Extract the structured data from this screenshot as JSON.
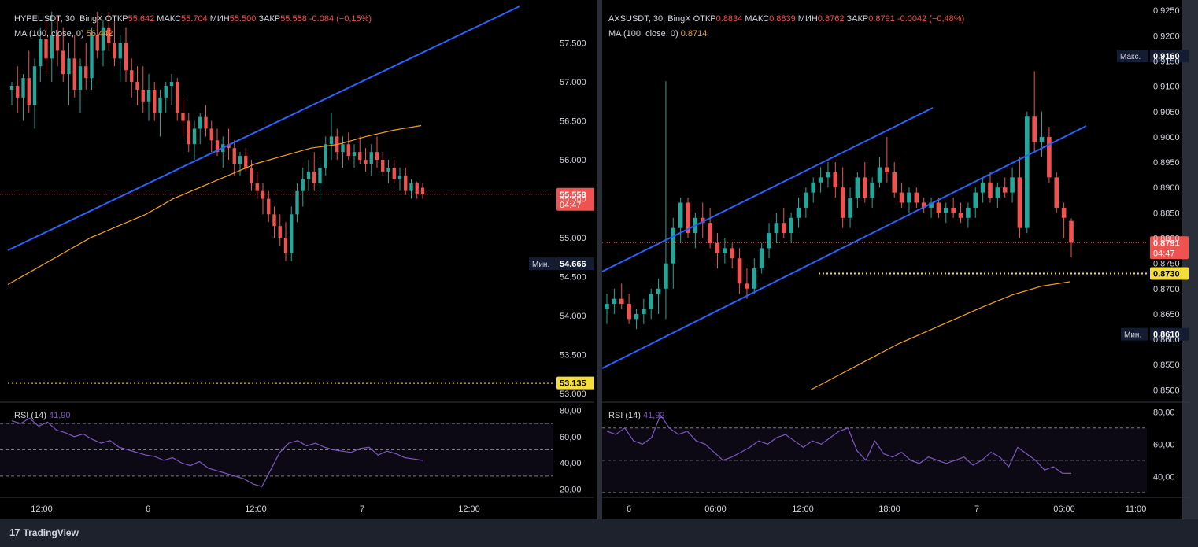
{
  "footer": {
    "brand": "TradingView"
  },
  "colors": {
    "up": "#26a69a",
    "down": "#ef5350",
    "ma": "#f7a21b",
    "trend": "#2962ff",
    "rsi": "#7e57c2",
    "badge_price": "#ef5350",
    "badge_level": "#f5de3b",
    "badge_dark": "#131c33"
  },
  "panels": [
    {
      "id": "left",
      "header": {
        "line1": [
          {
            "t": "HYPEUSDT, 30, BingX ",
            "c": "#d1d4dc"
          },
          {
            "t": "ОТКР",
            "c": "#d1d4dc"
          },
          {
            "t": "55.642 ",
            "c": "#ef5350"
          },
          {
            "t": "МАКС",
            "c": "#d1d4dc"
          },
          {
            "t": "55.704 ",
            "c": "#ef5350"
          },
          {
            "t": "МИН",
            "c": "#d1d4dc"
          },
          {
            "t": "55.500 ",
            "c": "#ef5350"
          },
          {
            "t": "ЗАКР",
            "c": "#d1d4dc"
          },
          {
            "t": "55.558 ",
            "c": "#ef5350"
          },
          {
            "t": "-0.084 (−0,15%)",
            "c": "#ef5350"
          }
        ],
        "line2_label": "MA (100, close, 0)",
        "line2_value": "56.442"
      },
      "rsi_label": "RSI (14)",
      "rsi_value": "41,90",
      "price_ticks": [
        "57.500",
        "57.000",
        "56.500",
        "56.000",
        "55.500",
        "55.000",
        "54.500",
        "54.000",
        "53.500",
        "53.000"
      ],
      "rsi_ticks": [
        "80,00",
        "60,00",
        "40,00",
        "20,00"
      ],
      "time_ticks": [
        "12:00",
        "6",
        "12:00",
        "7",
        "12:00"
      ],
      "badges": {
        "last_price": "55.558",
        "countdown": "04:47",
        "min_label": "Мин.",
        "min_value": "54.666",
        "level": "53.135"
      }
    },
    {
      "id": "right",
      "header": {
        "line1": [
          {
            "t": "AXSUSDT, 30, BingX ",
            "c": "#d1d4dc"
          },
          {
            "t": "ОТКР",
            "c": "#d1d4dc"
          },
          {
            "t": "0.8834 ",
            "c": "#ef5350"
          },
          {
            "t": "МАКС",
            "c": "#d1d4dc"
          },
          {
            "t": "0.8839 ",
            "c": "#ef5350"
          },
          {
            "t": "МИН",
            "c": "#d1d4dc"
          },
          {
            "t": "0.8762 ",
            "c": "#ef5350"
          },
          {
            "t": "ЗАКР",
            "c": "#d1d4dc"
          },
          {
            "t": "0.8791 ",
            "c": "#ef5350"
          },
          {
            "t": "-0.0042 (−0,48%)",
            "c": "#ef5350"
          }
        ],
        "line2_label": "MA (100, close, 0)",
        "line2_value": "0.8714"
      },
      "rsi_label": "RSI (14)",
      "rsi_value": "41,92",
      "price_ticks": [
        "0.9250",
        "0.9200",
        "0.9150",
        "0.9100",
        "0.9050",
        "0.9000",
        "0.8950",
        "0.8900",
        "0.8850",
        "0.8800",
        "0.8750",
        "0.8700",
        "0.8650",
        "0.8600",
        "0.8550",
        "0.8500"
      ],
      "rsi_ticks": [
        "80,00",
        "60,00",
        "40,00"
      ],
      "time_ticks": [
        "6",
        "06:00",
        "12:00",
        "18:00",
        "7",
        "06:00",
        "11:00"
      ],
      "badges": {
        "max_label": "Макс.",
        "max_value": "0.9160",
        "last_price": "0.8791",
        "countdown": "04:47",
        "level": "0.8730",
        "min_label": "Мин.",
        "min_value": "0.8610"
      }
    }
  ],
  "chart_data": [
    {
      "type": "candlestick",
      "title": "HYPEUSDT, 30, BingX",
      "ylim": [
        52.95,
        57.95
      ],
      "x_labels": [
        "12:00",
        "6",
        "12:00",
        "7",
        "12:00"
      ],
      "ohlc": [
        [
          56.9,
          57.0,
          56.7,
          56.95
        ],
        [
          56.95,
          57.2,
          56.6,
          56.8
        ],
        [
          56.8,
          57.1,
          56.5,
          57.05
        ],
        [
          57.05,
          57.4,
          56.6,
          56.7
        ],
        [
          56.7,
          57.3,
          56.4,
          57.2
        ],
        [
          57.2,
          57.7,
          57.0,
          57.55
        ],
        [
          57.55,
          57.8,
          57.1,
          57.3
        ],
        [
          57.3,
          57.9,
          57.0,
          57.6
        ],
        [
          57.6,
          57.85,
          57.2,
          57.4
        ],
        [
          57.4,
          57.7,
          57.0,
          57.1
        ],
        [
          57.1,
          57.5,
          56.7,
          57.3
        ],
        [
          57.3,
          57.6,
          56.8,
          56.9
        ],
        [
          56.9,
          57.3,
          56.6,
          57.2
        ],
        [
          57.2,
          57.5,
          56.9,
          57.05
        ],
        [
          57.05,
          57.7,
          56.9,
          57.6
        ],
        [
          57.6,
          57.9,
          57.3,
          57.4
        ],
        [
          57.4,
          57.8,
          57.2,
          57.7
        ],
        [
          57.7,
          57.9,
          57.4,
          57.5
        ],
        [
          57.5,
          57.8,
          57.2,
          57.3
        ],
        [
          57.3,
          57.6,
          57.0,
          57.5
        ],
        [
          57.5,
          57.7,
          57.0,
          57.15
        ],
        [
          57.15,
          57.3,
          56.8,
          57.0
        ],
        [
          57.0,
          57.2,
          56.7,
          56.9
        ],
        [
          56.9,
          57.2,
          56.6,
          56.75
        ],
        [
          56.75,
          57.1,
          56.5,
          56.9
        ],
        [
          56.9,
          57.0,
          56.5,
          56.6
        ],
        [
          56.6,
          56.9,
          56.3,
          56.8
        ],
        [
          56.8,
          57.0,
          56.6,
          56.95
        ],
        [
          56.95,
          57.1,
          56.7,
          57.0
        ],
        [
          57.0,
          57.05,
          56.5,
          56.6
        ],
        [
          56.6,
          56.8,
          56.3,
          56.5
        ],
        [
          56.5,
          56.6,
          56.1,
          56.2
        ],
        [
          56.2,
          56.5,
          56.0,
          56.4
        ],
        [
          56.4,
          56.6,
          56.2,
          56.55
        ],
        [
          56.55,
          56.7,
          56.3,
          56.4
        ],
        [
          56.4,
          56.5,
          56.1,
          56.25
        ],
        [
          56.25,
          56.4,
          56.05,
          56.1
        ],
        [
          56.1,
          56.3,
          55.9,
          56.2
        ],
        [
          56.2,
          56.4,
          56.0,
          56.15
        ],
        [
          56.15,
          56.25,
          55.8,
          55.95
        ],
        [
          55.95,
          56.1,
          55.8,
          56.05
        ],
        [
          56.05,
          56.15,
          55.85,
          55.9
        ],
        [
          55.9,
          56.0,
          55.6,
          55.7
        ],
        [
          55.7,
          55.85,
          55.5,
          55.6
        ],
        [
          55.6,
          55.7,
          55.3,
          55.5
        ],
        [
          55.5,
          55.6,
          55.2,
          55.3
        ],
        [
          55.3,
          55.4,
          55.0,
          55.15
        ],
        [
          55.15,
          55.3,
          54.9,
          55.0
        ],
        [
          55.0,
          55.2,
          54.7,
          54.8
        ],
        [
          54.8,
          55.4,
          54.7,
          55.3
        ],
        [
          55.3,
          55.7,
          55.2,
          55.6
        ],
        [
          55.6,
          55.9,
          55.4,
          55.75
        ],
        [
          55.75,
          56.0,
          55.6,
          55.85
        ],
        [
          55.85,
          56.1,
          55.6,
          55.7
        ],
        [
          55.7,
          56.0,
          55.5,
          55.9
        ],
        [
          55.9,
          56.3,
          55.8,
          56.2
        ],
        [
          56.2,
          56.6,
          56.0,
          56.3
        ],
        [
          56.3,
          56.4,
          56.0,
          56.1
        ],
        [
          56.1,
          56.3,
          55.9,
          56.2
        ],
        [
          56.2,
          56.35,
          56.0,
          56.05
        ],
        [
          56.05,
          56.2,
          55.9,
          56.1
        ],
        [
          56.1,
          56.3,
          55.95,
          56.0
        ],
        [
          56.0,
          56.15,
          55.85,
          55.95
        ],
        [
          55.95,
          56.2,
          55.8,
          56.1
        ],
        [
          56.1,
          56.3,
          55.9,
          56.0
        ],
        [
          56.0,
          56.1,
          55.8,
          55.85
        ],
        [
          55.85,
          56.0,
          55.7,
          55.9
        ],
        [
          55.9,
          56.0,
          55.7,
          55.75
        ],
        [
          55.75,
          55.9,
          55.6,
          55.8
        ],
        [
          55.8,
          55.9,
          55.55,
          55.6
        ],
        [
          55.6,
          55.75,
          55.5,
          55.7
        ],
        [
          55.7,
          55.72,
          55.5,
          55.56
        ],
        [
          55.642,
          55.704,
          55.5,
          55.558
        ]
      ],
      "ma_values": [
        54.4,
        54.6,
        54.8,
        55.0,
        55.15,
        55.3,
        55.5,
        55.65,
        55.8,
        55.95,
        56.05,
        56.15,
        56.2,
        56.3,
        56.38,
        56.44
      ],
      "rsi_values": [
        72,
        70,
        74,
        68,
        71,
        65,
        63,
        60,
        62,
        58,
        55,
        57,
        52,
        50,
        48,
        46,
        45,
        42,
        44,
        40,
        38,
        41,
        36,
        34,
        32,
        30,
        28,
        24,
        22,
        35,
        48,
        55,
        57,
        53,
        55,
        52,
        50,
        49,
        48,
        51,
        52,
        46,
        49,
        47,
        44,
        43,
        41.9
      ],
      "rsi_ylim": [
        15,
        85
      ]
    },
    {
      "type": "candlestick",
      "title": "AXSUSDT, 30, BingX",
      "ylim": [
        0.8485,
        0.9255
      ],
      "x_labels": [
        "6",
        "06:00",
        "12:00",
        "18:00",
        "7",
        "06:00",
        "11:00"
      ],
      "ohlc": [
        [
          0.866,
          0.869,
          0.863,
          0.867
        ],
        [
          0.867,
          0.87,
          0.865,
          0.868
        ],
        [
          0.868,
          0.871,
          0.866,
          0.867
        ],
        [
          0.867,
          0.869,
          0.863,
          0.864
        ],
        [
          0.864,
          0.866,
          0.862,
          0.865
        ],
        [
          0.865,
          0.868,
          0.863,
          0.866
        ],
        [
          0.866,
          0.87,
          0.864,
          0.869
        ],
        [
          0.869,
          0.872,
          0.865,
          0.87
        ],
        [
          0.87,
          0.911,
          0.864,
          0.875
        ],
        [
          0.875,
          0.884,
          0.87,
          0.882
        ],
        [
          0.882,
          0.888,
          0.879,
          0.887
        ],
        [
          0.887,
          0.888,
          0.88,
          0.881
        ],
        [
          0.881,
          0.885,
          0.878,
          0.884
        ],
        [
          0.884,
          0.887,
          0.88,
          0.883
        ],
        [
          0.883,
          0.886,
          0.878,
          0.879
        ],
        [
          0.879,
          0.881,
          0.874,
          0.877
        ],
        [
          0.877,
          0.88,
          0.875,
          0.878
        ],
        [
          0.878,
          0.879,
          0.874,
          0.876
        ],
        [
          0.876,
          0.878,
          0.869,
          0.871
        ],
        [
          0.871,
          0.874,
          0.868,
          0.87
        ],
        [
          0.87,
          0.876,
          0.869,
          0.874
        ],
        [
          0.874,
          0.879,
          0.873,
          0.878
        ],
        [
          0.878,
          0.883,
          0.876,
          0.881
        ],
        [
          0.881,
          0.885,
          0.879,
          0.883
        ],
        [
          0.883,
          0.886,
          0.88,
          0.881
        ],
        [
          0.881,
          0.885,
          0.879,
          0.884
        ],
        [
          0.884,
          0.888,
          0.882,
          0.886
        ],
        [
          0.886,
          0.89,
          0.884,
          0.889
        ],
        [
          0.889,
          0.892,
          0.887,
          0.891
        ],
        [
          0.891,
          0.894,
          0.889,
          0.892
        ],
        [
          0.892,
          0.895,
          0.89,
          0.893
        ],
        [
          0.893,
          0.895,
          0.888,
          0.89
        ],
        [
          0.89,
          0.894,
          0.882,
          0.884
        ],
        [
          0.884,
          0.89,
          0.882,
          0.888
        ],
        [
          0.888,
          0.893,
          0.886,
          0.892
        ],
        [
          0.892,
          0.895,
          0.887,
          0.888
        ],
        [
          0.888,
          0.892,
          0.886,
          0.891
        ],
        [
          0.891,
          0.896,
          0.89,
          0.894
        ],
        [
          0.894,
          0.9,
          0.891,
          0.893
        ],
        [
          0.893,
          0.895,
          0.888,
          0.889
        ],
        [
          0.889,
          0.891,
          0.886,
          0.887
        ],
        [
          0.887,
          0.89,
          0.885,
          0.889
        ],
        [
          0.889,
          0.89,
          0.886,
          0.887
        ],
        [
          0.887,
          0.888,
          0.885,
          0.886
        ],
        [
          0.886,
          0.888,
          0.884,
          0.887
        ],
        [
          0.887,
          0.888,
          0.884,
          0.885
        ],
        [
          0.885,
          0.887,
          0.883,
          0.886
        ],
        [
          0.886,
          0.888,
          0.884,
          0.885
        ],
        [
          0.885,
          0.887,
          0.883,
          0.884
        ],
        [
          0.884,
          0.887,
          0.882,
          0.886
        ],
        [
          0.886,
          0.89,
          0.884,
          0.889
        ],
        [
          0.889,
          0.892,
          0.887,
          0.891
        ],
        [
          0.891,
          0.893,
          0.887,
          0.888
        ],
        [
          0.888,
          0.891,
          0.886,
          0.89
        ],
        [
          0.89,
          0.892,
          0.888,
          0.889
        ],
        [
          0.889,
          0.894,
          0.887,
          0.892
        ],
        [
          0.892,
          0.896,
          0.88,
          0.882
        ],
        [
          0.882,
          0.905,
          0.881,
          0.904
        ],
        [
          0.904,
          0.913,
          0.897,
          0.899
        ],
        [
          0.899,
          0.905,
          0.896,
          0.9
        ],
        [
          0.9,
          0.902,
          0.891,
          0.892
        ],
        [
          0.892,
          0.893,
          0.885,
          0.886
        ],
        [
          0.886,
          0.887,
          0.88,
          0.884
        ],
        [
          0.8834,
          0.8839,
          0.8762,
          0.8791
        ]
      ],
      "ma_values": [
        0.85,
        0.853,
        0.856,
        0.859,
        0.8615,
        0.864,
        0.8665,
        0.8688,
        0.8705,
        0.8714
      ],
      "rsi_values": [
        68,
        66,
        70,
        62,
        60,
        64,
        78,
        70,
        66,
        68,
        62,
        60,
        55,
        50,
        52,
        55,
        58,
        62,
        60,
        64,
        66,
        62,
        58,
        62,
        60,
        64,
        68,
        70,
        56,
        50,
        62,
        54,
        52,
        55,
        50,
        48,
        52,
        50,
        48,
        50,
        52,
        47,
        50,
        55,
        52,
        46,
        58,
        54,
        50,
        44,
        46,
        42,
        41.92
      ],
      "rsi_ylim": [
        28,
        85
      ]
    }
  ]
}
